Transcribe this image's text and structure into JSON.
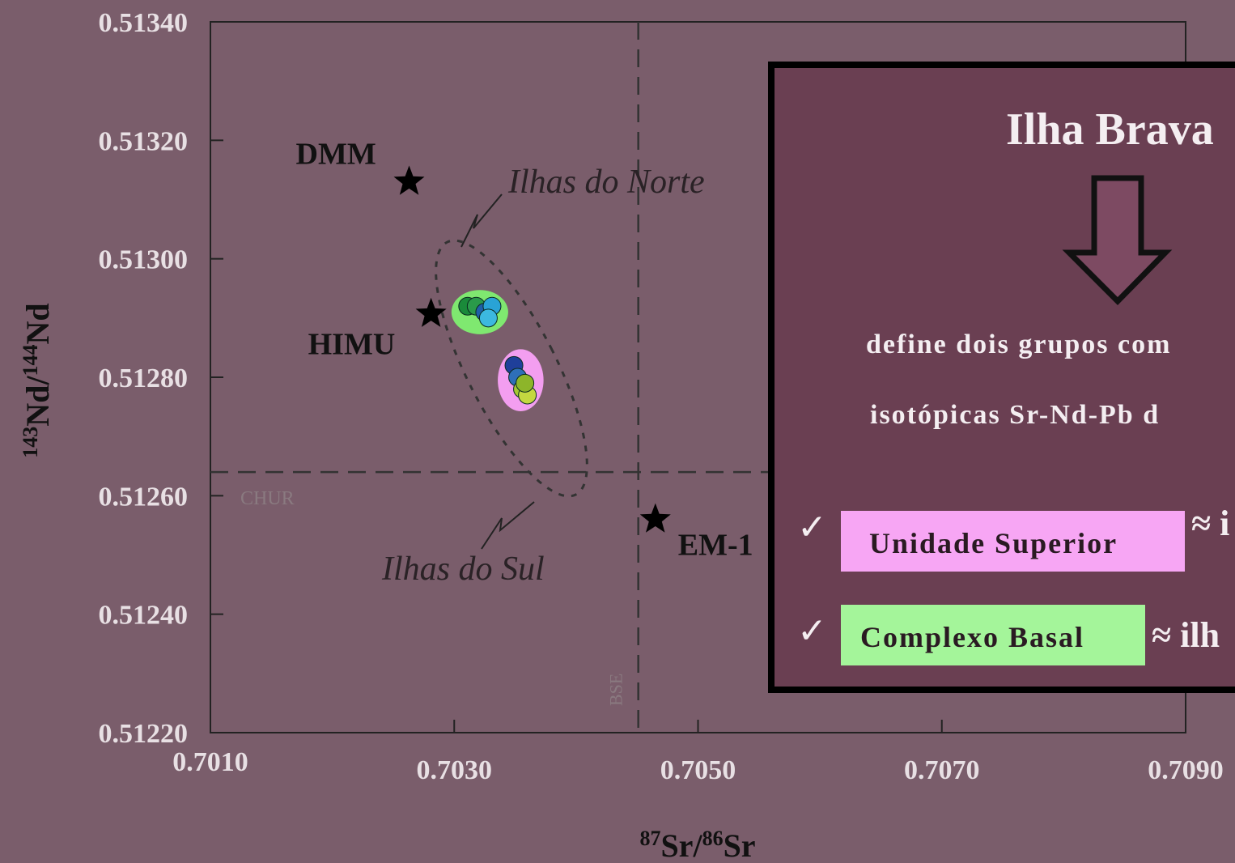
{
  "chart_data": {
    "type": "scatter",
    "x_label": [
      "87",
      "Sr/",
      "86",
      "Sr"
    ],
    "y_label": [
      "143",
      "Nd/",
      "144",
      "Nd"
    ],
    "xlim": [
      0.701,
      0.709
    ],
    "ylim": [
      0.5122,
      0.5134
    ],
    "xticks": [
      {
        "value": 0.701,
        "label": "0.7010"
      },
      {
        "value": 0.703,
        "label": "0.7030"
      },
      {
        "value": 0.705,
        "label": "0.7050"
      },
      {
        "value": 0.707,
        "label": "0.7070"
      },
      {
        "value": 0.709,
        "label": "0.7090"
      }
    ],
    "yticks": [
      {
        "value": 0.5122,
        "label": "0.51220"
      },
      {
        "value": 0.5124,
        "label": "0.51240"
      },
      {
        "value": 0.5126,
        "label": "0.51260"
      },
      {
        "value": 0.5128,
        "label": "0.51280"
      },
      {
        "value": 0.513,
        "label": "0.51300"
      },
      {
        "value": 0.5132,
        "label": "0.51320"
      },
      {
        "value": 0.5134,
        "label": "0.51340"
      }
    ],
    "reference_lines": {
      "horizontal": {
        "value": 0.51264,
        "label": "CHUR"
      },
      "vertical": {
        "value": 0.70451,
        "label": "BSE"
      }
    },
    "endmembers": {
      "labels": [
        "DMM",
        "HIMU",
        "EM-1"
      ],
      "x": [
        0.70263,
        0.70281,
        0.70465
      ],
      "values": [
        0.51313,
        0.512907,
        0.51256
      ],
      "color": "#000000"
    },
    "series": [
      {
        "x": [
          0.70311,
          0.70318,
          0.70325,
          0.70331,
          0.70328
        ],
        "values": [
          0.51292,
          0.51292,
          0.51291,
          0.51292,
          0.5129
        ],
        "colors": [
          "#1a8a3a",
          "#2a9a4a",
          "#1f5fa8",
          "#29a3d6",
          "#3cb8e0"
        ],
        "halo": "#7fe870"
      },
      {
        "x": [
          0.70349,
          0.70352,
          0.70356,
          0.7036,
          0.70358
        ],
        "values": [
          0.51282,
          0.5128,
          0.51278,
          0.51277,
          0.51279
        ],
        "colors": [
          "#1f3f9a",
          "#2e6fb8",
          "#a6c832",
          "#c4d840",
          "#8db52a"
        ],
        "halo": "#f39ef0"
      }
    ],
    "annotations": [
      "Ilhas do Norte",
      "Ilhas do Sul"
    ]
  },
  "panel": {
    "title": "Ilha Brava",
    "lines": [
      "define dois grupos com",
      "isotópicas Sr-Nd-Pb d"
    ],
    "items": [
      {
        "check": "✓",
        "label": "Unidade Superior",
        "tail": "≈ i",
        "color": "#f7a6f4"
      },
      {
        "check": "✓",
        "label": "Complexo Basal",
        "tail": "≈ ilh",
        "color": "#a4f59a"
      }
    ]
  }
}
